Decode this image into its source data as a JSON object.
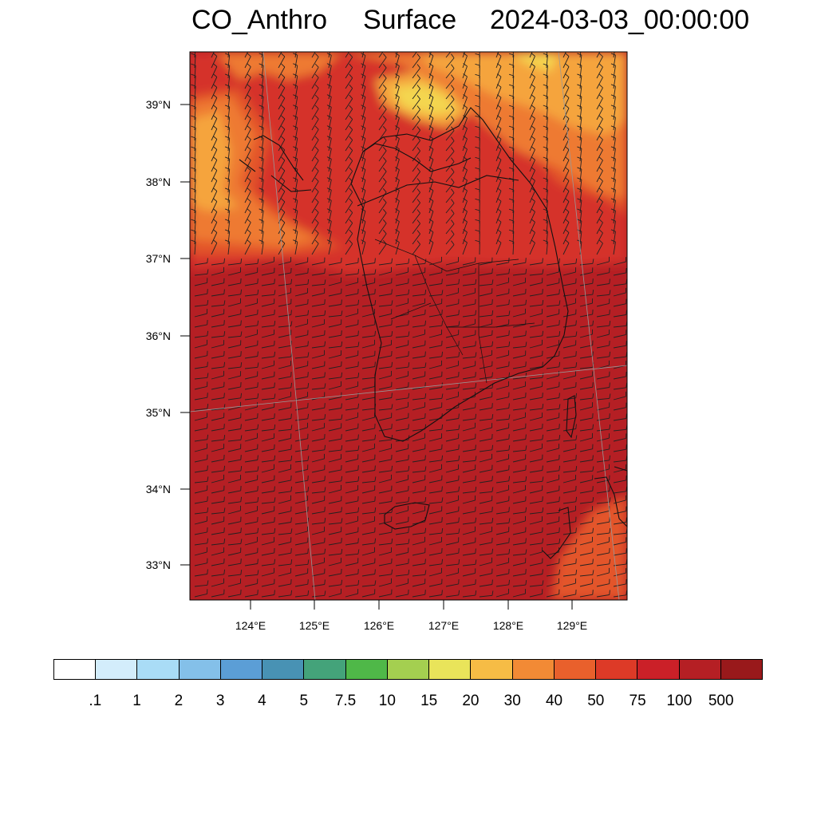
{
  "title": {
    "variable": "CO_Anthro",
    "level": "Surface",
    "datetime": "2024-03-03_00:00:00"
  },
  "map": {
    "lat_labels": [
      "39°N",
      "38°N",
      "37°N",
      "36°N",
      "35°N",
      "34°N",
      "33°N"
    ],
    "lon_labels": [
      "124°E",
      "125°E",
      "126°E",
      "127°E",
      "128°E",
      "129°E"
    ],
    "field_colors": {
      "background": "#b51f24",
      "band_75": "#d5332a",
      "band_50": "#e3552b",
      "band_40": "#ee7a30",
      "band_30": "#f5a43c",
      "band_20": "#f4d64f"
    }
  },
  "colorbar": {
    "colors": [
      "#ffffff",
      "#d3edfb",
      "#a9dcf6",
      "#84c0e9",
      "#5b9ed6",
      "#4892b4",
      "#44a37a",
      "#4fb848",
      "#a4cf50",
      "#e9e45a",
      "#f6bc45",
      "#f28a35",
      "#e9602c",
      "#dd3a27",
      "#cb2028",
      "#b51f24",
      "#99191b"
    ],
    "labels": [
      ".1",
      "1",
      "2",
      "3",
      "4",
      "5",
      "7.5",
      "10",
      "15",
      "20",
      "30",
      "40",
      "50",
      "75",
      "100",
      "500"
    ]
  }
}
